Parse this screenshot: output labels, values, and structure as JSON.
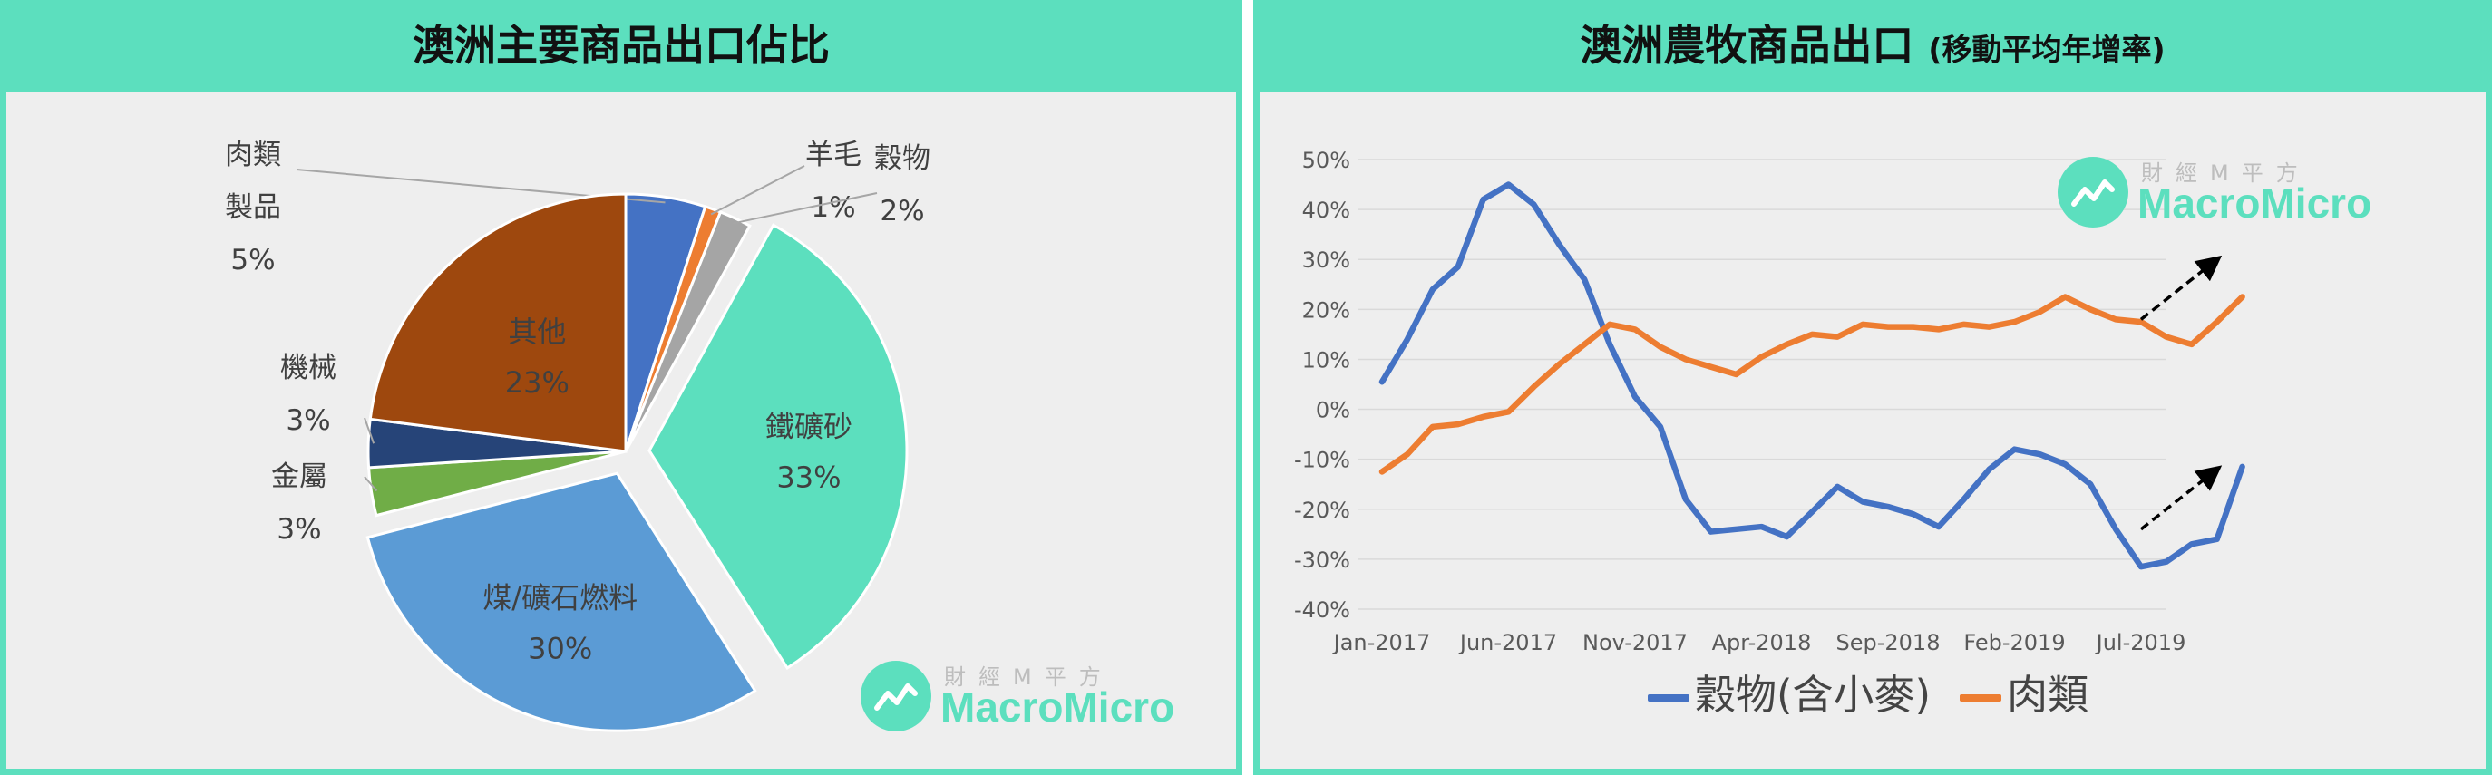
{
  "left_panel": {
    "title": "澳洲主要商品出口佔比"
  },
  "right_panel": {
    "title": "澳洲農牧商品出口",
    "subtitle": "(移動平均年增率)"
  },
  "watermark": {
    "chinese": "財經M平方",
    "english": "MacroMicro"
  },
  "colors": {
    "frame": "#5cdfbe",
    "plot_background": "#eeeeee",
    "grain": "#4472c4",
    "meat": "#ed7d31"
  },
  "chart_data": [
    {
      "type": "pie",
      "title": "澳洲主要商品出口佔比",
      "slices": [
        {
          "label": "肉類製品",
          "label_lines": [
            "肉類",
            "製品"
          ],
          "value": 5,
          "text": "5%",
          "color": "#4472c4",
          "exploded": false
        },
        {
          "label": "羊毛",
          "label_lines": [
            "羊毛"
          ],
          "value": 1,
          "text": "1%",
          "color": "#ed7d31",
          "exploded": false
        },
        {
          "label": "穀物",
          "label_lines": [
            "穀物"
          ],
          "value": 2,
          "text": "2%",
          "color": "#a5a5a5",
          "exploded": false
        },
        {
          "label": "鐵礦砂",
          "label_lines": [
            "鐵礦砂"
          ],
          "value": 33,
          "text": "33%",
          "color": "#5cdfbe",
          "exploded": true
        },
        {
          "label": "煤/礦石燃料",
          "label_lines": [
            "煤/礦石燃料"
          ],
          "value": 30,
          "text": "30%",
          "color": "#5b9bd5",
          "exploded": true
        },
        {
          "label": "金屬",
          "label_lines": [
            "金屬"
          ],
          "value": 3,
          "text": "3%",
          "color": "#70ad47",
          "exploded": false
        },
        {
          "label": "機械",
          "label_lines": [
            "機械"
          ],
          "value": 3,
          "text": "3%",
          "color": "#264478",
          "exploded": false
        },
        {
          "label": "其他",
          "label_lines": [
            "其他"
          ],
          "value": 23,
          "text": "23%",
          "color": "#9e480e",
          "exploded": false
        }
      ]
    },
    {
      "type": "line",
      "title": "澳洲農牧商品出口",
      "subtitle": "(移動平均年增率)",
      "x": [
        "2017-01",
        "2017-02",
        "2017-03",
        "2017-04",
        "2017-05",
        "2017-06",
        "2017-07",
        "2017-08",
        "2017-09",
        "2017-10",
        "2017-11",
        "2017-12",
        "2018-01",
        "2018-02",
        "2018-03",
        "2018-04",
        "2018-05",
        "2018-06",
        "2018-07",
        "2018-08",
        "2018-09",
        "2018-10",
        "2018-11",
        "2018-12",
        "2019-01",
        "2019-02",
        "2019-03",
        "2019-04",
        "2019-05",
        "2019-06",
        "2019-07",
        "2019-08",
        "2019-09",
        "2019-10",
        "2019-11",
        "2019-12"
      ],
      "x_tick_labels": [
        {
          "x": "2017-01",
          "label": "Jan-2017"
        },
        {
          "x": "2017-06",
          "label": "Jun-2017"
        },
        {
          "x": "2017-11",
          "label": "Nov-2017"
        },
        {
          "x": "2018-04",
          "label": "Apr-2018"
        },
        {
          "x": "2018-09",
          "label": "Sep-2018"
        },
        {
          "x": "2019-02",
          "label": "Feb-2019"
        },
        {
          "x": "2019-07",
          "label": "Jul-2019"
        }
      ],
      "ylim": [
        -40,
        50
      ],
      "y_ticks": [
        50,
        40,
        30,
        20,
        10,
        0,
        -10,
        -20,
        -30,
        -40
      ],
      "y_tick_labels": [
        "50%",
        "40%",
        "30%",
        "20%",
        "10%",
        "0%",
        "-10%",
        "-20%",
        "-30%",
        "-40%"
      ],
      "grid": true,
      "legend_position": "bottom",
      "series": [
        {
          "name": "穀物(含小麥)",
          "color": "#4472c4",
          "values": [
            5.5,
            14,
            24,
            28.5,
            42,
            45,
            41,
            33,
            26,
            13,
            2.5,
            -3.5,
            -18,
            -24.5,
            -24,
            -23.5,
            -25.5,
            -20.5,
            -15.5,
            -18.5,
            -19.5,
            -21,
            -23.5,
            -18,
            -12,
            -8,
            -9,
            -11,
            -15,
            -24,
            -31.5,
            -30.5,
            -27,
            -26,
            -11.5,
            null
          ]
        },
        {
          "name": "肉類",
          "color": "#ed7d31",
          "values": [
            -12.5,
            -9,
            -3.5,
            -3,
            -1.5,
            -0.5,
            4.5,
            9,
            13,
            17,
            16,
            12.5,
            10,
            8.5,
            7,
            10.5,
            13,
            15,
            14.5,
            17,
            16.5,
            16.5,
            16,
            17,
            16.5,
            17.5,
            19.5,
            22.5,
            20,
            18,
            17.5,
            14.5,
            13,
            17.5,
            22.5,
            null
          ]
        }
      ],
      "annotations": [
        {
          "type": "arrow",
          "from": {
            "x": "2019-07",
            "y": 18
          },
          "to": {
            "x": "2019-10",
            "y": 30
          }
        },
        {
          "type": "arrow",
          "from": {
            "x": "2019-07",
            "y": -24
          },
          "to": {
            "x": "2019-10",
            "y": -12
          }
        }
      ]
    }
  ]
}
